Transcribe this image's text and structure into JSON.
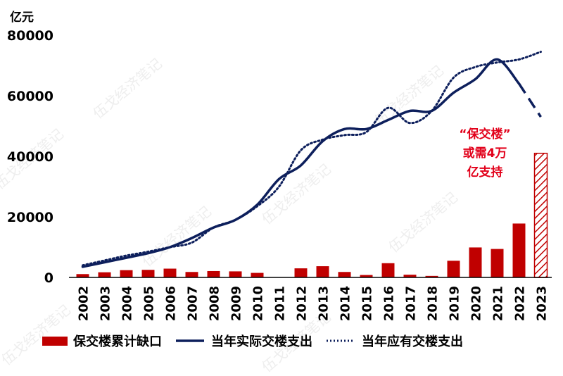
{
  "watermark": "伍戈经济笔记",
  "annotation": [
    "“保交楼”",
    "或需4万",
    "亿支持"
  ],
  "colors": {
    "bar": "#c00000",
    "line": "#0d1f5c",
    "annotation": "#e2001a",
    "axis": "#000000"
  },
  "legend": {
    "gap_label": "保交楼累计缺口",
    "actual_label": "当年实际交楼支出",
    "required_label": "当年应有交楼支出"
  },
  "chart_data": {
    "type": "bar",
    "unit_label": "亿元",
    "categories": [
      "2002",
      "2003",
      "2004",
      "2005",
      "2006",
      "2007",
      "2008",
      "2009",
      "2010",
      "2011",
      "2012",
      "2013",
      "2014",
      "2015",
      "2016",
      "2017",
      "2018",
      "2019",
      "2020",
      "2021",
      "2022",
      "2023"
    ],
    "ylim": [
      0,
      80000
    ],
    "yticks": [
      0,
      20000,
      40000,
      60000,
      80000
    ],
    "series": [
      {
        "name": "保交楼累计缺口",
        "type": "bar",
        "values": [
          1100,
          1700,
          2400,
          2500,
          2900,
          1800,
          2100,
          2000,
          1500,
          0,
          3000,
          3700,
          1800,
          800,
          4700,
          900,
          500,
          5500,
          9900,
          9400,
          17800,
          41000
        ],
        "hatched_last": true
      },
      {
        "name": "当年实际交楼支出",
        "type": "line",
        "style": "solid",
        "values": [
          3500,
          5000,
          6500,
          8000,
          10000,
          13000,
          16500,
          19000,
          24000,
          32500,
          37000,
          45000,
          49000,
          49000,
          52000,
          55000,
          55000,
          61000,
          65500,
          72000,
          64000,
          53000
        ],
        "dashed_last": true
      },
      {
        "name": "当年应有交楼支出",
        "type": "line",
        "style": "dotted",
        "values": [
          4000,
          5600,
          7200,
          8500,
          10000,
          11500,
          16500,
          19000,
          23500,
          30000,
          42000,
          45500,
          47000,
          48000,
          56000,
          51000,
          55000,
          66000,
          69500,
          71000,
          72000,
          74500
        ]
      }
    ],
    "grid": false,
    "legend_position": "bottom"
  }
}
